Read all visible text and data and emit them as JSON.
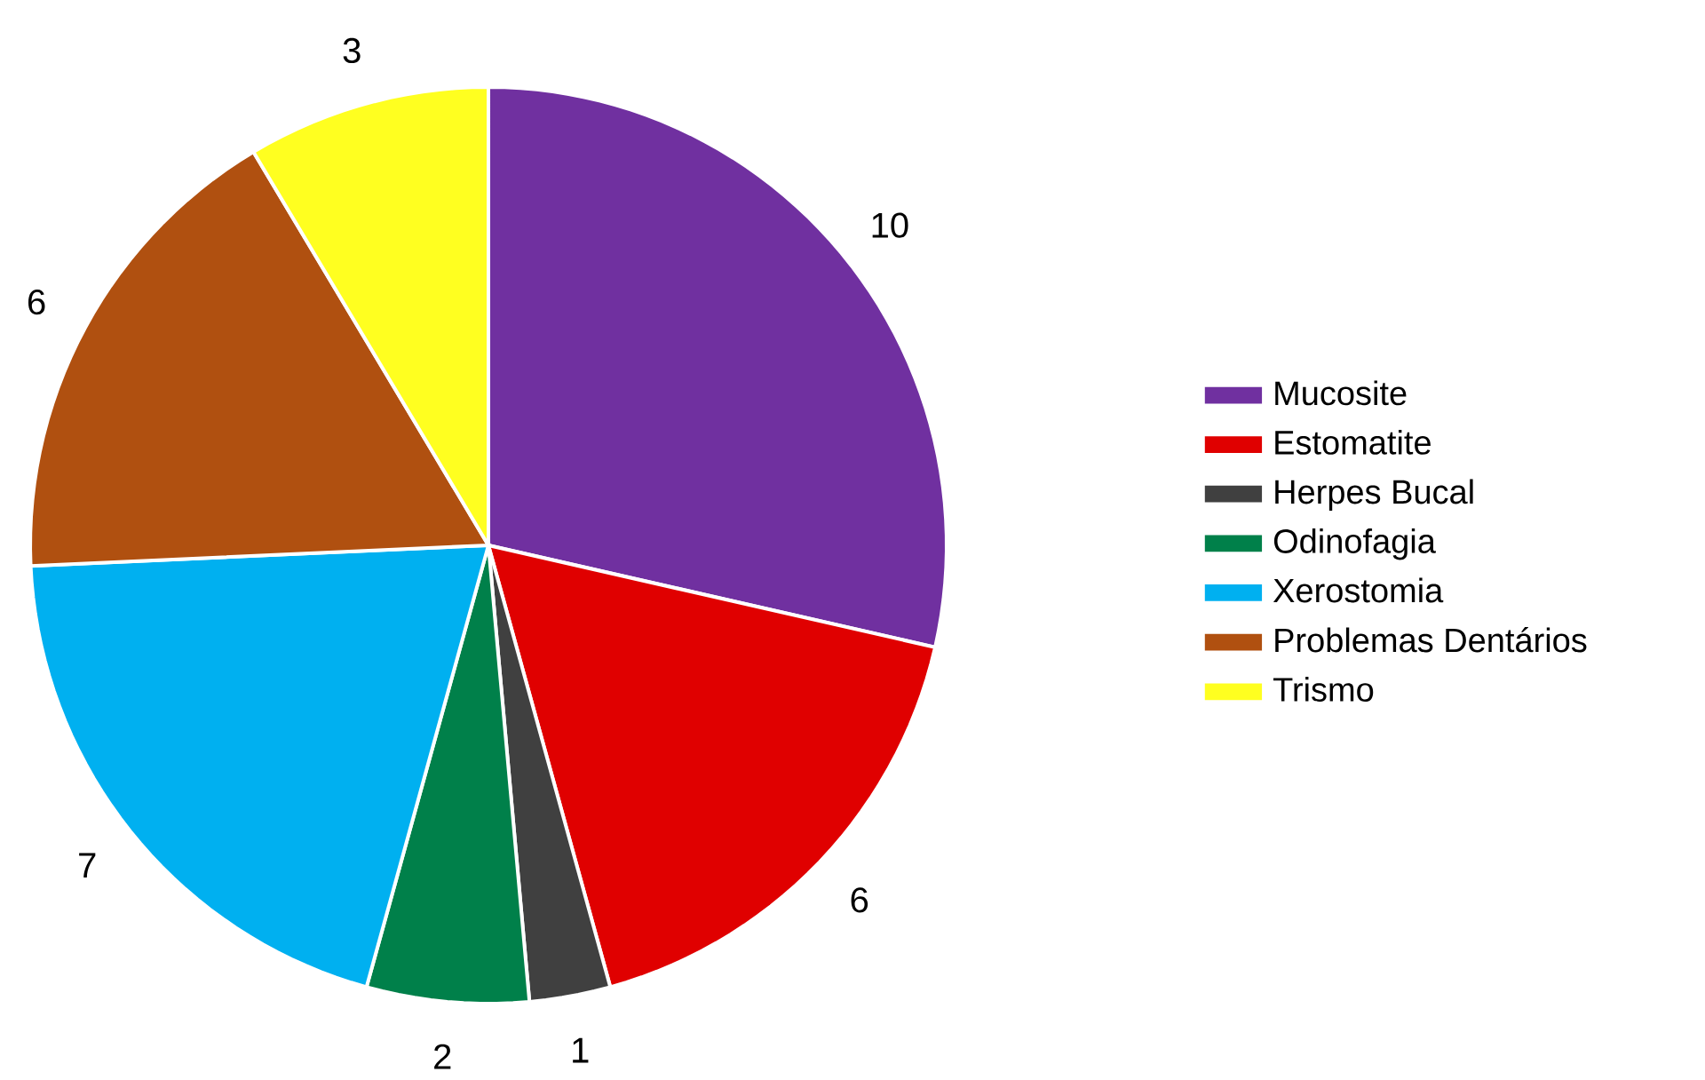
{
  "chart_data": {
    "type": "pie",
    "categories": [
      "Mucosite",
      "Estomatite",
      "Herpes Bucal",
      "Odinofagia",
      "Xerostomia",
      "Problemas Dentários",
      "Trismo"
    ],
    "values": [
      10,
      6,
      1,
      2,
      7,
      6,
      3
    ],
    "colors": [
      "#7030a0",
      "#e00000",
      "#404040",
      "#00804a",
      "#00b0f0",
      "#b05010",
      "#ffff20"
    ],
    "data_labels": true,
    "legend": "right"
  }
}
